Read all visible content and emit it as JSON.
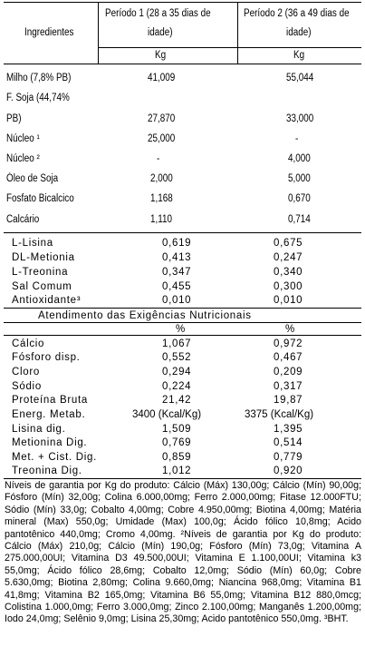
{
  "table": {
    "header": {
      "ingredientes": "Ingredientes",
      "periodo1_line1": "Período 1 (28 a 35 dias de",
      "periodo1_line2": "idade)",
      "periodo2_line1": "Período 2 (36 a 49 dias de",
      "periodo2_line2": "idade)",
      "unit1": "Kg",
      "unit2": "Kg"
    },
    "ingredients": [
      {
        "name": "Milho (7,8% PB)",
        "p1": "41,009",
        "p2": "55,044"
      },
      {
        "name": "F. Soja (44,74%",
        "p1": "",
        "p2": ""
      },
      {
        "name": "PB)",
        "p1": "27,870",
        "p2": "33,000"
      },
      {
        "name": "Núcleo ¹",
        "p1": "25,000",
        "p2": "-"
      },
      {
        "name": "Núcleo ²",
        "p1": "-",
        "p2": "4,000"
      },
      {
        "name": "Óleo de Soja",
        "p1": "2,000",
        "p2": "5,000"
      },
      {
        "name": "Fosfato Bicalcico",
        "p1": "1,168",
        "p2": "0,670"
      },
      {
        "name": "Calcário",
        "p1": "1,110",
        "p2": "0,714"
      }
    ],
    "additives": [
      {
        "name": "L-Lisina",
        "p1": "0,619",
        "p2": "0,675"
      },
      {
        "name": "DL-Metionia",
        "p1": "0,413",
        "p2": "0,247"
      },
      {
        "name": "L-Treonina",
        "p1": "0,347",
        "p2": "0,340"
      },
      {
        "name": "Sal Comum",
        "p1": "0,455",
        "p2": "0,300"
      },
      {
        "name": "Antioxidante³",
        "p1": "0,010",
        "p2": "0,010"
      }
    ],
    "section_title": "Atendimento das Exigências Nutricionais",
    "pct1": "%",
    "pct2": "%",
    "requirements": [
      {
        "name": "Cálcio",
        "p1": "1,067",
        "p2": "0,972"
      },
      {
        "name": "Fósforo disp.",
        "p1": "0,552",
        "p2": "0,467"
      },
      {
        "name": "Cloro",
        "p1": "0,294",
        "p2": "0,209"
      },
      {
        "name": "Sódio",
        "p1": "0,224",
        "p2": "0,317"
      },
      {
        "name": "Proteína Bruta",
        "p1": "21,42",
        "p2": "19,87"
      },
      {
        "name": "Energ. Metab.",
        "p1": "3400 (Kcal/Kg)",
        "p2": "3375 (Kcal/Kg)"
      },
      {
        "name": "Lisina dig.",
        "p1": "1,509",
        "p2": "1,395"
      },
      {
        "name": "Metionina Dig.",
        "p1": "0,769",
        "p2": "0,514"
      },
      {
        "name": "Met. + Cist. Dig.",
        "p1": "0,859",
        "p2": "0,779"
      },
      {
        "name": "Treonina Dig.",
        "p1": "1,012",
        "p2": "0,920"
      }
    ]
  },
  "footnote": "Níveis de garantia por Kg do produto: Cálcio (Máx) 130,00g; Cálcio (Mín) 90,00g; Fósforo (Mín) 32,00g; Colina 6.000,00mg; Ferro 2.000,00mg; Fitase 12.000FTU; Sódio (Mín) 33,0g; Cobalto 4,00mg; Cobre 4.950,00mg; Biotina 4,00mg; Matéria mineral (Max) 550,0g; Umidade (Max) 100,0g; Ácido fólico 10,8mg; Acido pantotênico 440,0mg; Cromo 4,00mg. ²Níveis de garantia por Kg do produto: Cálcio (Máx) 210,0g; Cálcio (Mín) 190,0g; Fósforo (Mín) 73,0g; Vitamina A 275.000,00UI; Vitamina D3 49.500,00UI; Vitamina E 1.100,00UI; Vitamina k3 55,0mg; Ácido fólico 28,6mg; Cobalto 12,0mg; Sódio (Mín) 60,0g; Cobre 5.630,0mg; Biotina 2,80mg; Colina 9.660,0mg; Niancina 968,0mg; Vitamina B1 41,8mg; Vitamina B2 165,0mg; Vitamina B6 55,0mg; Vitamina B12 880,0mcg; Colistina 1.000,0mg; Ferro 3.000,0mg; Zinco 2.100,00mg; Manganês 1.200,00mg; Iodo 24,0mg; Selênio 9,0mg; Lisina 25,30mg; Acido pantotênico 550,0mg. ³BHT."
}
